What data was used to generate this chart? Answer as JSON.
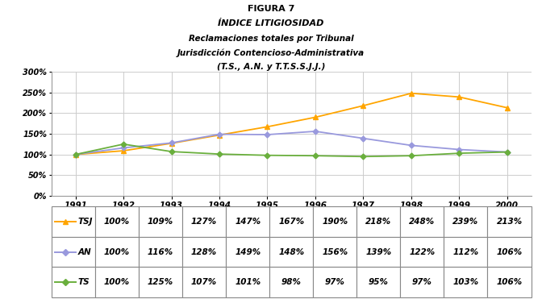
{
  "fig_label": "FIGURA 7",
  "title_line1": "ÍNDICE LITIGIOSIDAD",
  "title_line2": "Reclamaciones totales por Tribunal",
  "title_line3": "Jurisdicción Contencioso-Administrativa",
  "title_line4": "(T.S., A.N. y T.T.S.S.J.J.)",
  "years": [
    1991,
    1992,
    1993,
    1994,
    1995,
    1996,
    1997,
    1998,
    1999,
    2000
  ],
  "TSJ": [
    100,
    109,
    127,
    147,
    167,
    190,
    218,
    248,
    239,
    213
  ],
  "AN": [
    100,
    116,
    128,
    149,
    148,
    156,
    139,
    122,
    112,
    106
  ],
  "TS": [
    100,
    125,
    107,
    101,
    98,
    97,
    95,
    97,
    103,
    106
  ],
  "color_TSJ": "#FFA500",
  "color_AN": "#9999DD",
  "color_TS": "#6AAF3D",
  "ylim": [
    0,
    300
  ],
  "yticks": [
    0,
    50,
    100,
    150,
    200,
    250,
    300
  ],
  "background_color": "#ffffff",
  "grid_color": "#cccccc"
}
